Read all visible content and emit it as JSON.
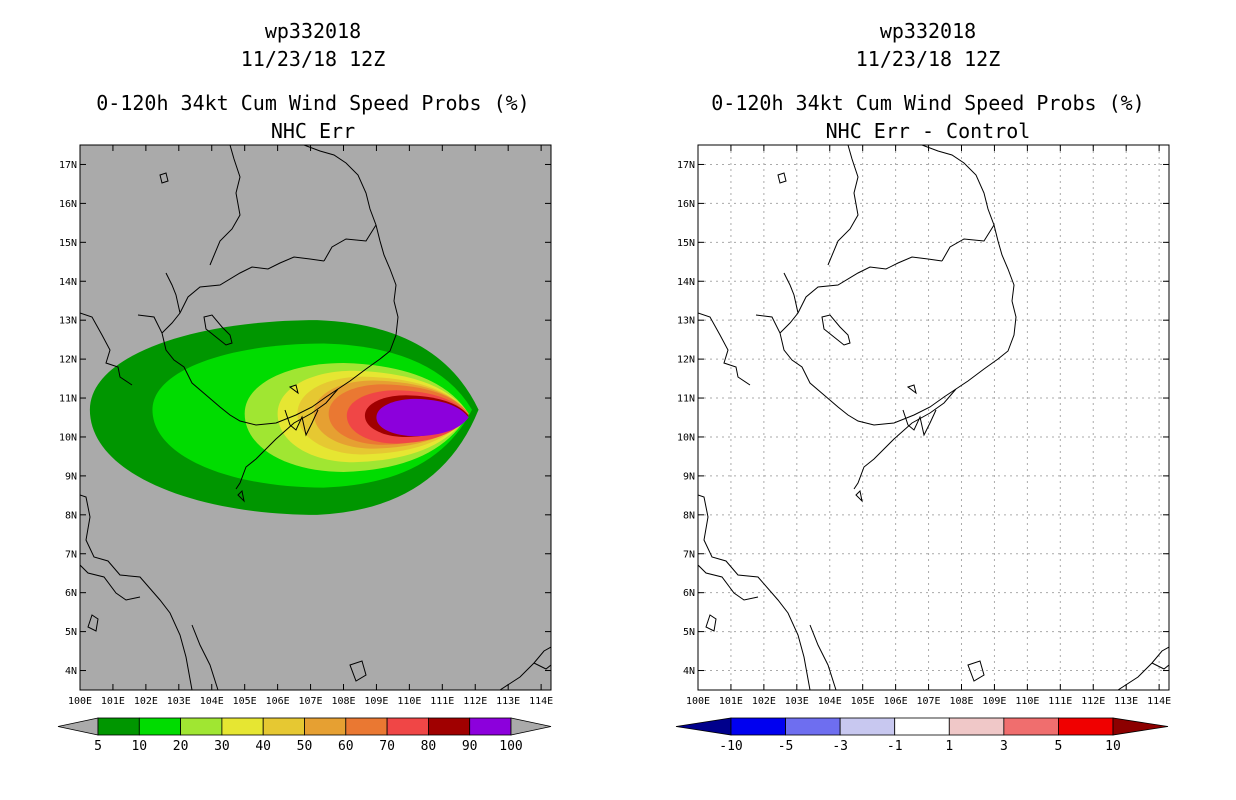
{
  "chart_data": [
    {
      "type": "heatmap",
      "id": "left",
      "storm_id": "wp332018",
      "date": "11/23/18 12Z",
      "title": "0-120h 34kt Cum Wind Speed Probs (%)",
      "subtitle": "NHC Err",
      "x_range": [
        100,
        114.3
      ],
      "y_range": [
        3.5,
        17.5
      ],
      "x_ticks": [
        100,
        101,
        102,
        103,
        104,
        105,
        106,
        107,
        108,
        109,
        110,
        111,
        112,
        113,
        114
      ],
      "x_tick_labels": [
        "100E",
        "101E",
        "102E",
        "103E",
        "104E",
        "105E",
        "106E",
        "107E",
        "108E",
        "109E",
        "110E",
        "111E",
        "112E",
        "113E",
        "114E"
      ],
      "y_ticks": [
        4,
        5,
        6,
        7,
        8,
        9,
        10,
        11,
        12,
        13,
        14,
        15,
        16,
        17
      ],
      "y_tick_labels": [
        "4N",
        "5N",
        "6N",
        "7N",
        "8N",
        "9N",
        "10N",
        "11N",
        "12N",
        "13N",
        "14N",
        "15N",
        "16N",
        "17N"
      ],
      "grid": false,
      "background_color": "#aaaaaa",
      "colorbar": {
        "labels": [
          "5",
          "10",
          "20",
          "30",
          "40",
          "50",
          "60",
          "70",
          "80",
          "90",
          "100"
        ],
        "colors": [
          "#aaaaaa",
          "#009600",
          "#00dc00",
          "#a0e632",
          "#e6e632",
          "#e6c832",
          "#e6a032",
          "#ea7832",
          "#f04646",
          "#a00000",
          "#8c00dc",
          "#aaaaaa"
        ]
      },
      "contours": [
        {
          "level": 5,
          "color": "#009600",
          "cx": 107.2,
          "cy": 10.7,
          "rx_east": 4.9,
          "rx_west": 6.9,
          "ry_north": 2.3,
          "ry_south": 2.7
        },
        {
          "level": 10,
          "color": "#00dc00",
          "cx": 107.4,
          "cy": 10.7,
          "rx_east": 4.5,
          "rx_west": 5.2,
          "ry_north": 1.7,
          "ry_south": 2.0
        },
        {
          "level": 20,
          "color": "#a0e632",
          "cx": 108.0,
          "cy": 10.6,
          "rx_east": 3.8,
          "rx_west": 3.0,
          "ry_north": 1.3,
          "ry_south": 1.5
        },
        {
          "level": 30,
          "color": "#e6e632",
          "cx": 108.3,
          "cy": 10.6,
          "rx_east": 3.5,
          "rx_west": 2.3,
          "ry_north": 1.1,
          "ry_south": 1.25
        },
        {
          "level": 40,
          "color": "#e6c832",
          "cx": 108.6,
          "cy": 10.6,
          "rx_east": 3.2,
          "rx_west": 2.0,
          "ry_north": 0.95,
          "ry_south": 1.05
        },
        {
          "level": 50,
          "color": "#e6a032",
          "cx": 108.9,
          "cy": 10.6,
          "rx_east": 2.9,
          "rx_west": 1.8,
          "ry_north": 0.85,
          "ry_south": 0.9
        },
        {
          "level": 60,
          "color": "#ea7832",
          "cx": 109.2,
          "cy": 10.6,
          "rx_east": 2.6,
          "rx_west": 1.65,
          "ry_north": 0.75,
          "ry_south": 0.8
        },
        {
          "level": 70,
          "color": "#f04646",
          "cx": 109.6,
          "cy": 10.55,
          "rx_east": 2.2,
          "rx_west": 1.5,
          "ry_north": 0.65,
          "ry_south": 0.72
        },
        {
          "level": 80,
          "color": "#a00000",
          "cx": 109.9,
          "cy": 10.55,
          "rx_east": 1.9,
          "rx_west": 1.25,
          "ry_north": 0.52,
          "ry_south": 0.55
        },
        {
          "level": 90,
          "color": "#8c00dc",
          "cx": 110.2,
          "cy": 10.5,
          "rx_east": 1.6,
          "rx_west": 1.2,
          "ry_north": 0.48,
          "ry_south": 0.48
        }
      ]
    },
    {
      "type": "heatmap",
      "id": "right",
      "storm_id": "wp332018",
      "date": "11/23/18 12Z",
      "title": "0-120h 34kt Cum Wind Speed Probs (%)",
      "subtitle": "NHC Err - Control",
      "x_range": [
        100,
        114.3
      ],
      "y_range": [
        3.5,
        17.5
      ],
      "x_ticks": [
        100,
        101,
        102,
        103,
        104,
        105,
        106,
        107,
        108,
        109,
        110,
        111,
        112,
        113,
        114
      ],
      "x_tick_labels": [
        "100E",
        "101E",
        "102E",
        "103E",
        "104E",
        "105E",
        "106E",
        "107E",
        "108E",
        "109E",
        "110E",
        "111E",
        "112E",
        "113E",
        "114E"
      ],
      "y_ticks": [
        4,
        5,
        6,
        7,
        8,
        9,
        10,
        11,
        12,
        13,
        14,
        15,
        16,
        17
      ],
      "y_tick_labels": [
        "4N",
        "5N",
        "6N",
        "7N",
        "8N",
        "9N",
        "10N",
        "11N",
        "12N",
        "13N",
        "14N",
        "15N",
        "16N",
        "17N"
      ],
      "grid": true,
      "background_color": "#ffffff",
      "colorbar": {
        "labels": [
          "-10",
          "-5",
          "-3",
          "-1",
          "1",
          "3",
          "5",
          "10"
        ],
        "colors": [
          "#00008c",
          "#0000f0",
          "#6e6ef0",
          "#c8c8f0",
          "#ffffff",
          "#f0c8c8",
          "#f06e6e",
          "#f00000",
          "#8c0000"
        ]
      },
      "contours": []
    }
  ]
}
